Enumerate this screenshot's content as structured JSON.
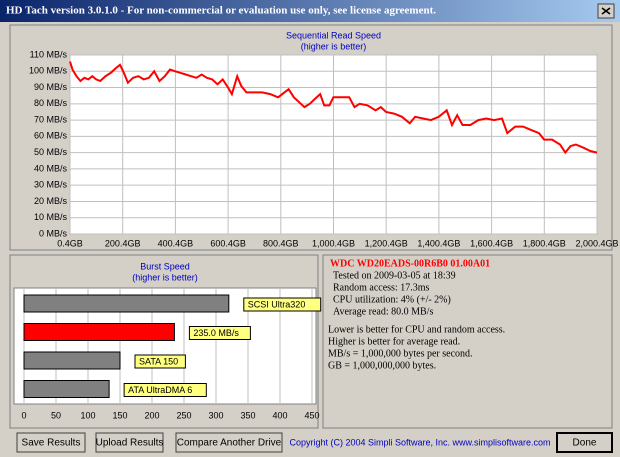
{
  "window": {
    "title": "HD Tach version 3.0.1.0  -  For non-commercial or evaluation use only, see license agreement."
  },
  "chart_data": [
    {
      "type": "line",
      "title": "Sequential Read Speed",
      "subtitle": "(higher is better)",
      "x": [
        0.4,
        10,
        25,
        40,
        55,
        70,
        85,
        100,
        115,
        135,
        155,
        175,
        190,
        205,
        220,
        240,
        260,
        280,
        300,
        320,
        340,
        360,
        380,
        400,
        420,
        440,
        460,
        480,
        500,
        520,
        540,
        560,
        580,
        600,
        615,
        635,
        650,
        670,
        700,
        730,
        760,
        790,
        830,
        850,
        870,
        890,
        910,
        930,
        950,
        965,
        985,
        1000,
        1030,
        1060,
        1080,
        1100,
        1130,
        1160,
        1180,
        1200,
        1230,
        1260,
        1290,
        1310,
        1340,
        1370,
        1400,
        1430,
        1450,
        1470,
        1490,
        1520,
        1550,
        1580,
        1610,
        1640,
        1660,
        1690,
        1720,
        1750,
        1780,
        1800,
        1830,
        1860,
        1880,
        1900,
        1920,
        1950,
        1975,
        2000.4
      ],
      "series": [
        {
          "color": "#ff0000",
          "values": [
            106,
            101,
            97,
            94,
            96,
            95,
            97,
            95,
            94,
            97,
            99,
            102,
            104,
            99,
            93,
            96,
            97,
            95,
            96,
            100,
            94,
            97,
            101,
            100,
            99,
            98,
            97,
            96,
            98,
            96,
            95,
            92,
            95,
            90,
            86,
            97,
            91,
            87,
            87,
            87,
            86,
            84,
            89,
            84,
            81,
            78,
            80,
            83,
            86,
            79,
            79,
            84,
            84,
            84,
            78,
            80,
            79,
            76,
            78,
            75,
            74,
            72,
            68,
            72,
            71,
            70,
            72,
            76,
            67,
            73,
            67,
            67,
            70,
            71,
            70,
            71,
            62,
            66,
            66,
            64,
            62,
            58,
            58,
            55,
            50,
            54,
            55,
            53,
            51,
            50
          ]
        }
      ],
      "xlim": [
        0.4,
        2000.4
      ],
      "xticks": [
        {
          "value": 0.4,
          "label": "0.4GB"
        },
        {
          "value": 200.4,
          "label": "200.4GB"
        },
        {
          "value": 400.4,
          "label": "400.4GB"
        },
        {
          "value": 600.4,
          "label": "600.4GB"
        },
        {
          "value": 800.4,
          "label": "800.4GB"
        },
        {
          "value": 1000.4,
          "label": "1,000.4GB"
        },
        {
          "value": 1200.4,
          "label": "1,200.4GB"
        },
        {
          "value": 1400.4,
          "label": "1,400.4GB"
        },
        {
          "value": 1600.4,
          "label": "1,600.4GB"
        },
        {
          "value": 1800.4,
          "label": "1,800.4GB"
        },
        {
          "value": 2000.4,
          "label": "2,000.4GB"
        }
      ],
      "ylim": [
        0,
        110
      ],
      "yticks": [
        {
          "value": 0,
          "label": "0 MB/s"
        },
        {
          "value": 10,
          "label": "10 MB/s"
        },
        {
          "value": 20,
          "label": "20 MB/s"
        },
        {
          "value": 30,
          "label": "30 MB/s"
        },
        {
          "value": 40,
          "label": "40 MB/s"
        },
        {
          "value": 50,
          "label": "50 MB/s"
        },
        {
          "value": 60,
          "label": "60 MB/s"
        },
        {
          "value": 70,
          "label": "70 MB/s"
        },
        {
          "value": 80,
          "label": "80 MB/s"
        },
        {
          "value": 90,
          "label": "90 MB/s"
        },
        {
          "value": 100,
          "label": "100 MB/s"
        },
        {
          "value": 110,
          "label": "110 MB/s"
        }
      ],
      "grid": true
    },
    {
      "type": "hbar",
      "title": "Burst Speed",
      "subtitle": "(higher is better)",
      "categories": [
        "SCSI Ultra320",
        null,
        "SATA 150",
        "ATA UltraDMA 6"
      ],
      "values": [
        320,
        235,
        150,
        133
      ],
      "value_labels": [
        null,
        "235.0 MB/s",
        null,
        null
      ],
      "colors": [
        "#808080",
        "#ff0000",
        "#808080",
        "#808080"
      ],
      "xlim": [
        0,
        450
      ],
      "xticks": [
        0,
        50,
        100,
        150,
        200,
        250,
        300,
        350,
        400,
        450
      ],
      "grid": true
    }
  ],
  "drive_info": {
    "name": "WDC  WD20EADS-00R6B0  01.00A01",
    "lines": [
      "Tested on 2009-03-05 at 18:39",
      "Random access: 17.3ms",
      "CPU utilization: 4% (+/- 2%)",
      "Average read: 80.0 MB/s"
    ],
    "notes": [
      "Lower is better for CPU and random access.",
      "Higher is better for average read.",
      "MB/s = 1,000,000 bytes per second.",
      "GB = 1,000,000,000 bytes."
    ]
  },
  "buttons": [
    "Save Results",
    "Upload Results",
    "Compare Another Drive"
  ],
  "copyright": "Copyright (C) 2004 Simpli Software, Inc. www.simplisoftware.com",
  "done": "Done"
}
